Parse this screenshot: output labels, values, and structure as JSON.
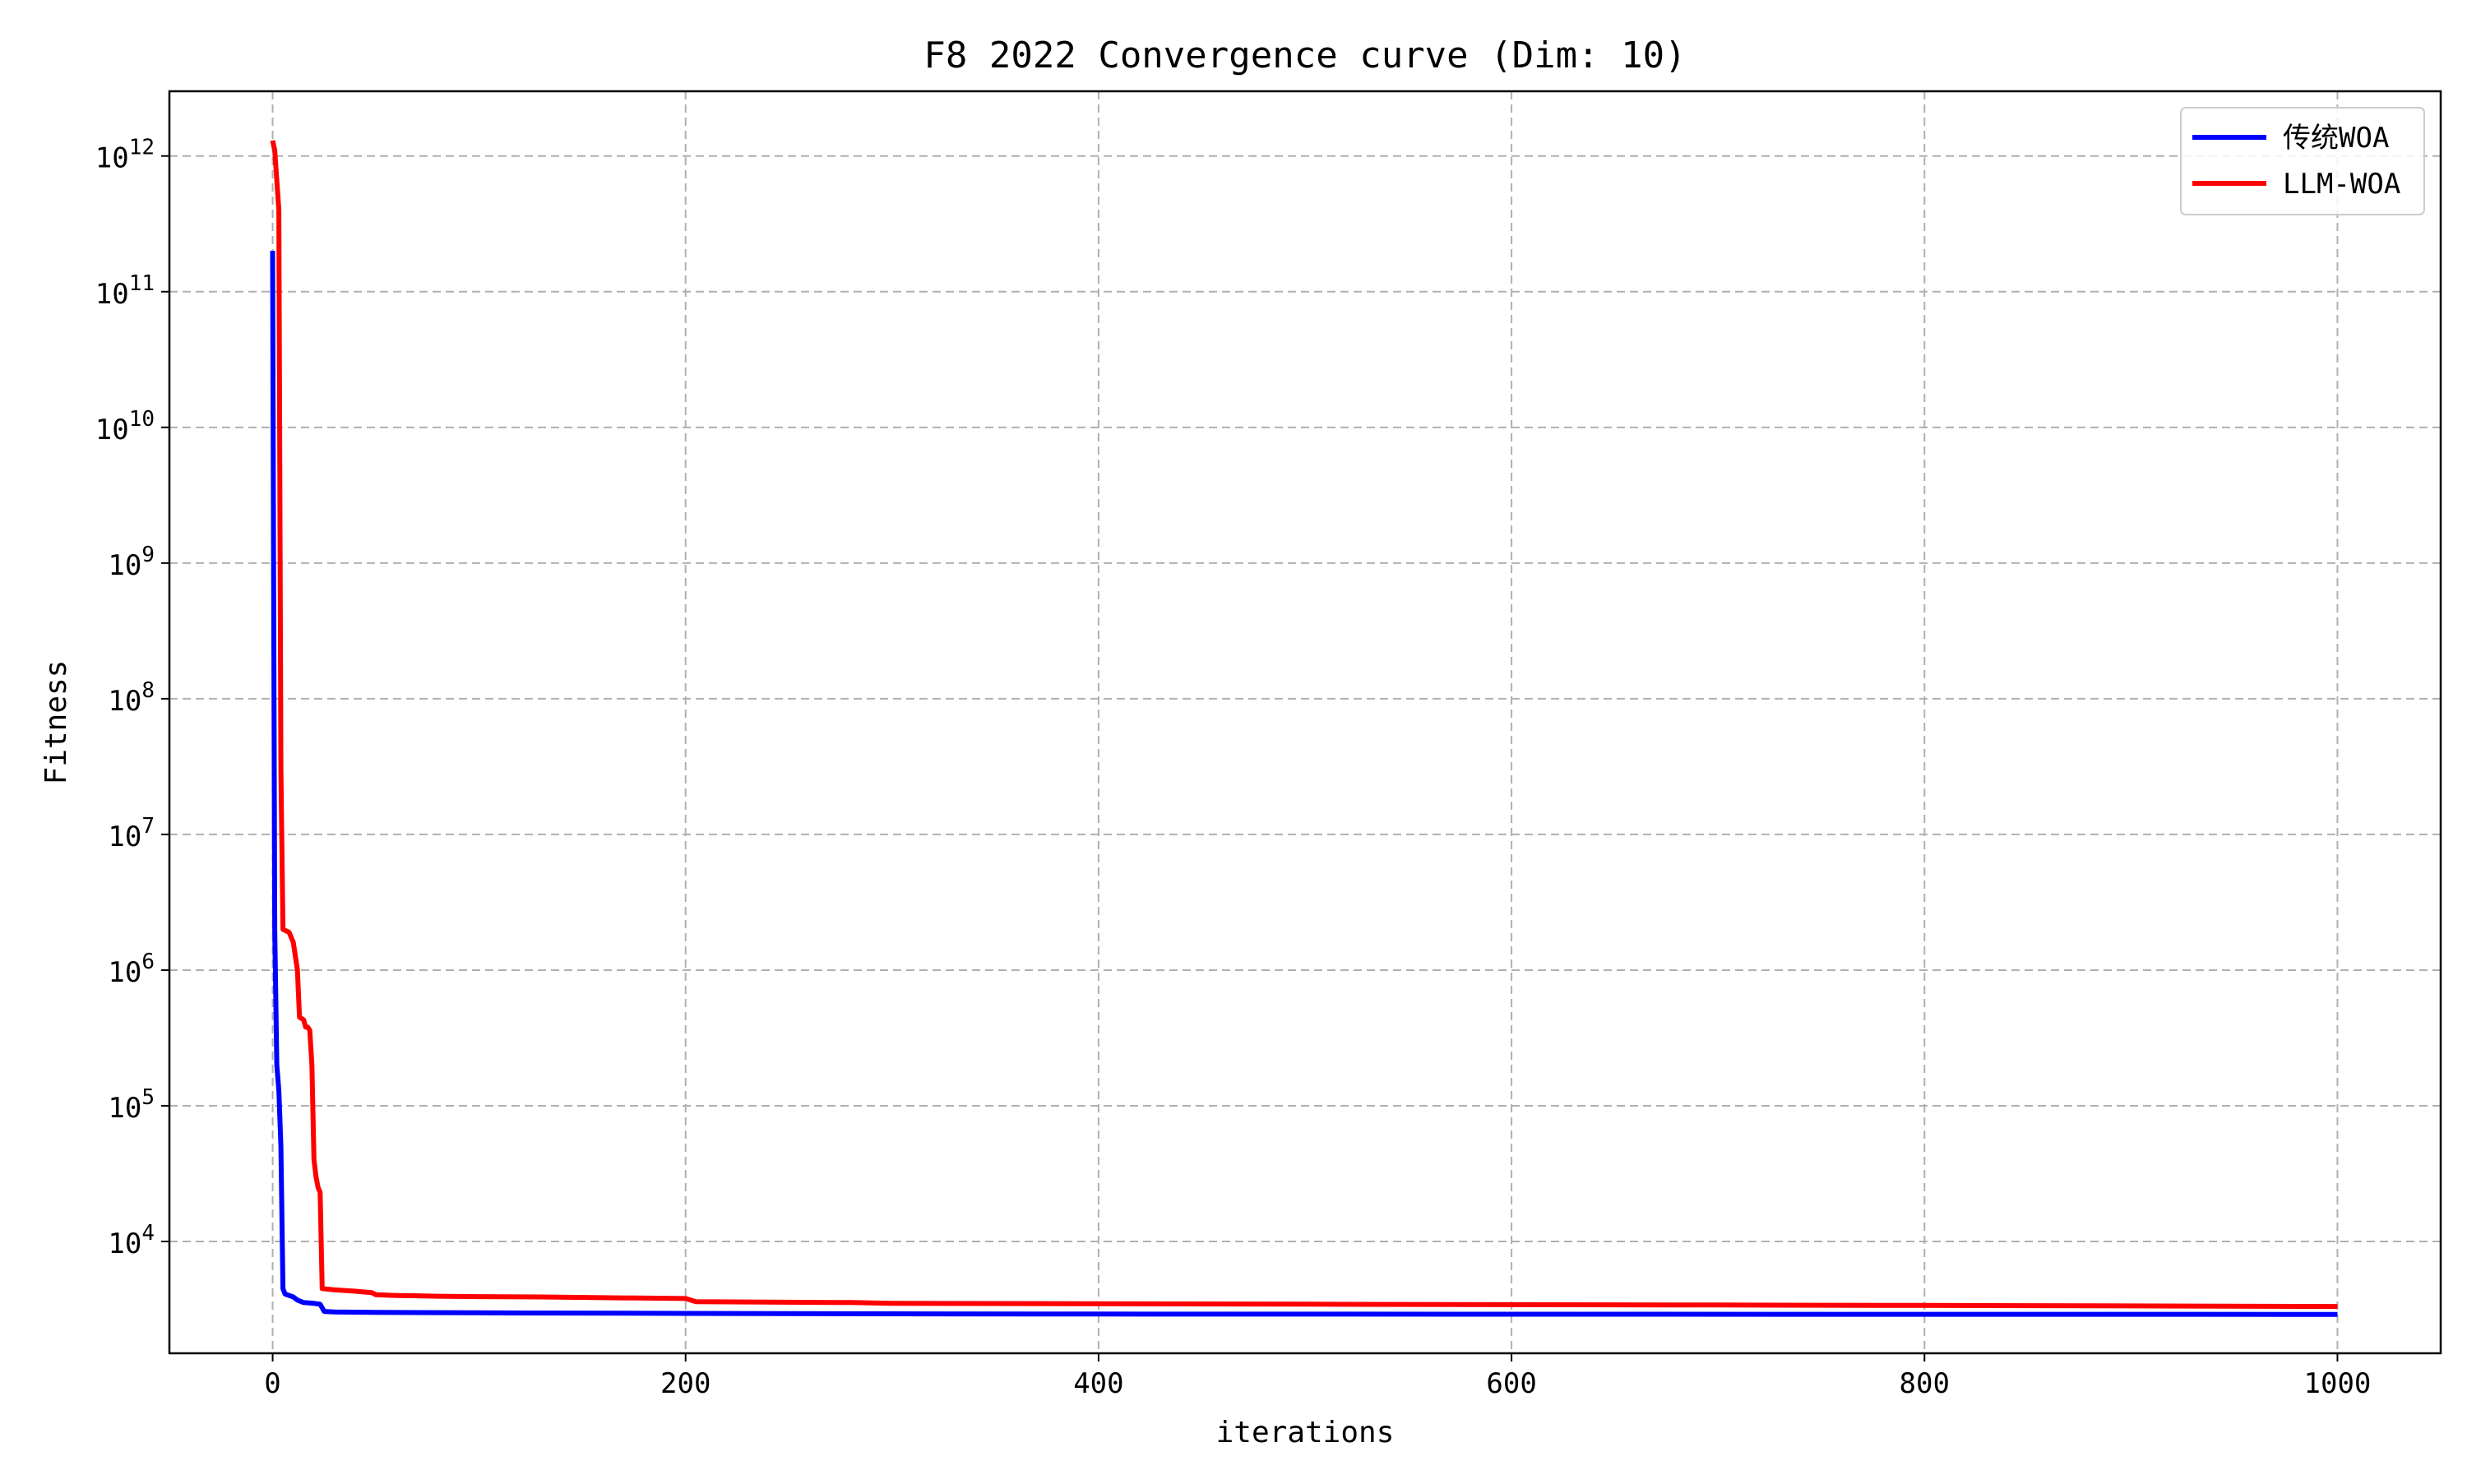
{
  "chart_data": {
    "type": "line",
    "title": "F8 2022 Convergence curve (Dim: 10)",
    "xlabel": "iterations",
    "ylabel": "Fitness",
    "yscale": "log",
    "xlim": [
      -50,
      1050
    ],
    "ylim": [
      1500,
      3000000000000
    ],
    "xticks": [
      0,
      200,
      400,
      600,
      800,
      1000
    ],
    "yticks": [
      {
        "value": 10000,
        "base": "10",
        "exp": "4"
      },
      {
        "value": 100000,
        "base": "10",
        "exp": "5"
      },
      {
        "value": 1000000,
        "base": "10",
        "exp": "6"
      },
      {
        "value": 10000000,
        "base": "10",
        "exp": "7"
      },
      {
        "value": 100000000,
        "base": "10",
        "exp": "8"
      },
      {
        "value": 1000000000,
        "base": "10",
        "exp": "9"
      },
      {
        "value": 10000000000,
        "base": "10",
        "exp": "10"
      },
      {
        "value": 100000000000,
        "base": "10",
        "exp": "11"
      },
      {
        "value": 1000000000000,
        "base": "10",
        "exp": "12"
      }
    ],
    "grid": true,
    "legend_position": "top-right",
    "series": [
      {
        "name": "传统WOA",
        "color": "#0000ff",
        "points": [
          [
            0,
            200000000000
          ],
          [
            1,
            2000000
          ],
          [
            2,
            200000
          ],
          [
            3,
            130000
          ],
          [
            4,
            50000
          ],
          [
            5,
            4500
          ],
          [
            6,
            4100
          ],
          [
            10,
            3900
          ],
          [
            12,
            3700
          ],
          [
            15,
            3550
          ],
          [
            20,
            3500
          ],
          [
            23,
            3450
          ],
          [
            25,
            3050
          ],
          [
            30,
            3020
          ],
          [
            50,
            3000
          ],
          [
            100,
            2980
          ],
          [
            200,
            2950
          ],
          [
            300,
            2930
          ],
          [
            400,
            2920
          ],
          [
            600,
            2910
          ],
          [
            800,
            2905
          ],
          [
            1000,
            2900
          ]
        ]
      },
      {
        "name": "LLM-WOA",
        "color": "#ff0000",
        "points": [
          [
            0,
            1300000000000
          ],
          [
            1,
            1100000000000
          ],
          [
            3,
            400000000000
          ],
          [
            4,
            30000000
          ],
          [
            5,
            2000000
          ],
          [
            8,
            1900000
          ],
          [
            10,
            1600000
          ],
          [
            12,
            1000000
          ],
          [
            13,
            450000
          ],
          [
            15,
            430000
          ],
          [
            16,
            380000
          ],
          [
            17,
            380000
          ],
          [
            18,
            360000
          ],
          [
            19,
            200000
          ],
          [
            20,
            40000
          ],
          [
            21,
            30000
          ],
          [
            22,
            25000
          ],
          [
            23,
            23000
          ],
          [
            24,
            4500
          ],
          [
            30,
            4400
          ],
          [
            40,
            4300
          ],
          [
            48,
            4200
          ],
          [
            50,
            4050
          ],
          [
            60,
            4000
          ],
          [
            80,
            3950
          ],
          [
            100,
            3920
          ],
          [
            130,
            3900
          ],
          [
            160,
            3850
          ],
          [
            200,
            3800
          ],
          [
            205,
            3600
          ],
          [
            280,
            3550
          ],
          [
            300,
            3500
          ],
          [
            400,
            3480
          ],
          [
            500,
            3450
          ],
          [
            600,
            3420
          ],
          [
            700,
            3400
          ],
          [
            800,
            3380
          ],
          [
            900,
            3350
          ],
          [
            1000,
            3320
          ]
        ]
      }
    ]
  }
}
